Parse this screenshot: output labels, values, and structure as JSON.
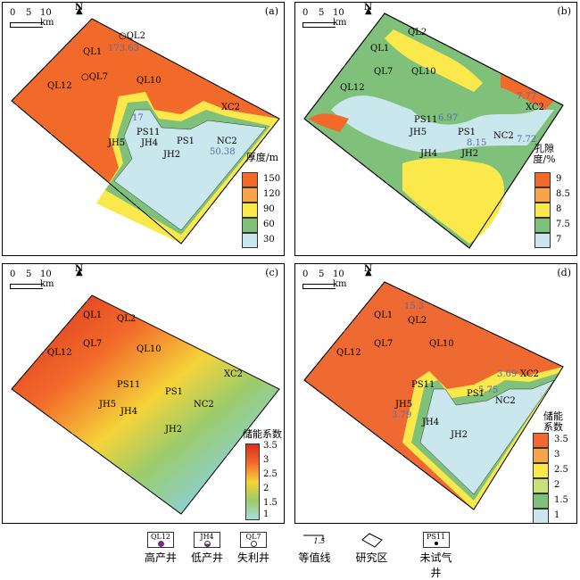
{
  "scalebar": {
    "t0": "0",
    "t5": "5",
    "t10": "10 km",
    "north": "N"
  },
  "panels": {
    "a": {
      "label": "(a)",
      "legend_title": "厚度/m",
      "legend": [
        {
          "label": "150",
          "color": "#f26a2a"
        },
        {
          "label": "120",
          "color": "#f7a54a"
        },
        {
          "label": "90",
          "color": "#fbe84a"
        },
        {
          "label": "60",
          "color": "#7fc07a"
        },
        {
          "label": "30",
          "color": "#c9e7ec"
        }
      ],
      "values": {
        "ql2": "173.63",
        "ps11": "17",
        "nc2": "50.38"
      }
    },
    "b": {
      "label": "(b)",
      "legend_title": "孔隙度/%",
      "legend": [
        {
          "label": "9",
          "color": "#f26a2a"
        },
        {
          "label": "8.5",
          "color": "#f7a54a"
        },
        {
          "label": "8",
          "color": "#fbe84a"
        },
        {
          "label": "7.5",
          "color": "#7fc07a"
        },
        {
          "label": "7",
          "color": "#c9e7ec"
        }
      ],
      "values": {
        "xc2": "7.77",
        "ps11": "6.97",
        "ps1": "8.15",
        "nc2": "7.72"
      }
    },
    "c": {
      "label": "(c)",
      "legend_title": "储能系数",
      "legend": [
        {
          "label": "3.5"
        },
        {
          "label": "3"
        },
        {
          "label": "2.5"
        },
        {
          "label": "2"
        },
        {
          "label": "1.5"
        },
        {
          "label": "1"
        }
      ]
    },
    "d": {
      "label": "(d)",
      "legend_title": "储能系数",
      "legend": [
        {
          "label": "3.5",
          "color": "#ef6a32"
        },
        {
          "label": "3",
          "color": "#f7a54a"
        },
        {
          "label": "2.5",
          "color": "#fbe84a"
        },
        {
          "label": "2",
          "color": "#c8e27a"
        },
        {
          "label": "1.5",
          "color": "#7fc07a"
        },
        {
          "label": "1",
          "color": "#c9e7ec"
        }
      ],
      "values": {
        "ql2": "15.3",
        "xc2": "3.69",
        "ps1": "5.75",
        "jh5": "3.79"
      }
    }
  },
  "wells": {
    "QL1": "QL1",
    "QL2": "QL2",
    "QL7": "QL7",
    "QL10": "QL10",
    "QL12": "QL12",
    "XC2": "XC2",
    "PS11": "PS11",
    "PS1": "PS1",
    "NC2": "NC2",
    "JH2": "JH2",
    "JH4": "JH4",
    "JH5": "JH5"
  },
  "key": [
    {
      "sym": "QL12",
      "label": "高产井"
    },
    {
      "sym": "JH4",
      "label": "低产井"
    },
    {
      "sym": "QL7",
      "label": "失利井"
    },
    {
      "sym": "1.5",
      "label": "等值线"
    },
    {
      "sym": "",
      "label": "研究区"
    },
    {
      "sym": "PS11",
      "label": "未试气井"
    }
  ]
}
